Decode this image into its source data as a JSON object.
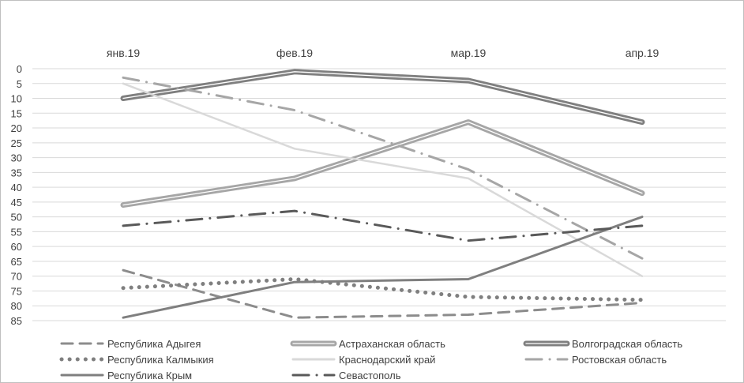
{
  "chart_data": {
    "type": "line",
    "categories": [
      "янв.19",
      "фев.19",
      "мар.19",
      "апр.19"
    ],
    "y_axis": {
      "reversed": true,
      "ylim": [
        0,
        85
      ],
      "step": 5,
      "ticks": [
        "0",
        "5",
        "10",
        "15",
        "20",
        "25",
        "30",
        "35",
        "40",
        "45",
        "50",
        "55",
        "60",
        "65",
        "70",
        "75",
        "80",
        "85"
      ]
    },
    "grid": true,
    "legend_position": "bottom",
    "series": [
      {
        "name": "Республика Адыгея",
        "values": [
          68,
          84,
          83,
          79
        ],
        "color": "#8c8c8c",
        "style": "dashed"
      },
      {
        "name": "Астраханская область",
        "values": [
          46,
          37,
          18,
          42
        ],
        "color": "#a6a6a6",
        "style": "double"
      },
      {
        "name": "Волгоградская область",
        "values": [
          10,
          1,
          4,
          18
        ],
        "color": "#7f7f7f",
        "style": "double"
      },
      {
        "name": "Республика Калмыкия",
        "values": [
          74,
          71,
          77,
          78
        ],
        "color": "#7f7f7f",
        "style": "dotted"
      },
      {
        "name": "Краснодарский край",
        "values": [
          5,
          27,
          37,
          70
        ],
        "color": "#d9d9d9",
        "style": "solid"
      },
      {
        "name": "Ростовская область",
        "values": [
          3,
          14,
          34,
          64
        ],
        "color": "#a6a6a6",
        "style": "dashdot"
      },
      {
        "name": "Республика Крым",
        "values": [
          84,
          72,
          71,
          50
        ],
        "color": "#7f7f7f",
        "style": "solid"
      },
      {
        "name": "Севастополь",
        "values": [
          53,
          48,
          58,
          53
        ],
        "color": "#595959",
        "style": "dashdot"
      }
    ]
  }
}
